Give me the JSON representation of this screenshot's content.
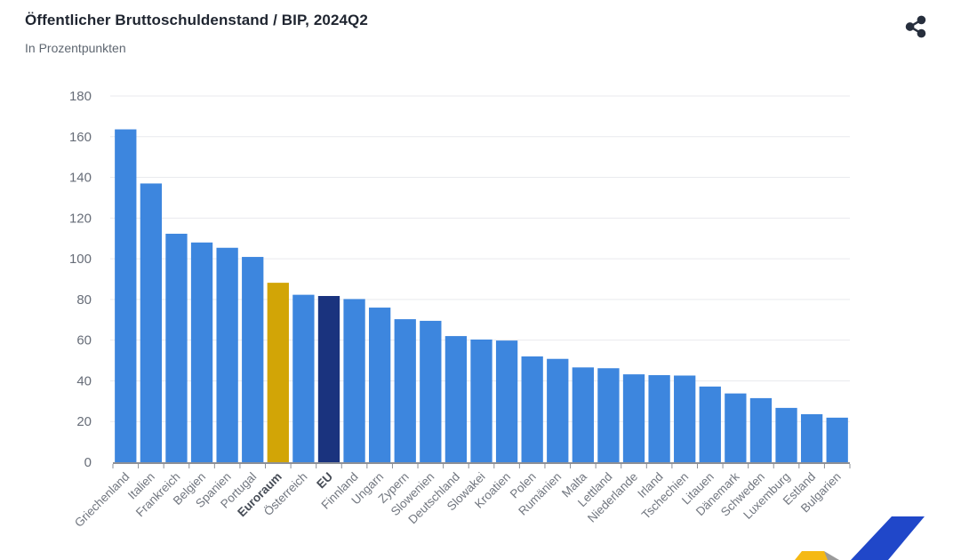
{
  "header": {
    "share_icon": "share-icon"
  },
  "chart_data": {
    "type": "bar",
    "title": "Öffentlicher Bruttoschuldenstand / BIP, 2024Q2",
    "subtitle": "In Prozentpunkten",
    "xlabel": "",
    "ylabel": "",
    "ylim": [
      0,
      180
    ],
    "ytick_step": 20,
    "grid": "horizontal",
    "legend": "none",
    "colors": {
      "bar_default": "#3d86de",
      "bar_gold": "#d2a506",
      "bar_navy": "#1a337e",
      "gridline": "#e9eaee",
      "axis": "#8d9097",
      "ytick_label": "#676d78",
      "xtick_label": "#71767f",
      "xtick_label_bold": "#464c56"
    },
    "points": [
      {
        "label": "Griechenland",
        "value": 163.6
      },
      {
        "label": "Italien",
        "value": 137.0
      },
      {
        "label": "Frankreich",
        "value": 112.3
      },
      {
        "label": "Belgien",
        "value": 108.0
      },
      {
        "label": "Spanien",
        "value": 105.4
      },
      {
        "label": "Portugal",
        "value": 100.9
      },
      {
        "label": "Euroraum",
        "value": 88.2,
        "highlight": "gold",
        "bold": true
      },
      {
        "label": "Österreich",
        "value": 82.3
      },
      {
        "label": "EU",
        "value": 81.7,
        "highlight": "navy",
        "bold": true
      },
      {
        "label": "Finnland",
        "value": 80.2
      },
      {
        "label": "Ungarn",
        "value": 76.0
      },
      {
        "label": "Zypern",
        "value": 70.3
      },
      {
        "label": "Slowenien",
        "value": 69.5
      },
      {
        "label": "Deutschland",
        "value": 62.0
      },
      {
        "label": "Slowakei",
        "value": 60.3
      },
      {
        "label": "Kroatien",
        "value": 59.8
      },
      {
        "label": "Polen",
        "value": 52.0
      },
      {
        "label": "Rumänien",
        "value": 50.8
      },
      {
        "label": "Malta",
        "value": 46.6
      },
      {
        "label": "Lettland",
        "value": 46.2
      },
      {
        "label": "Niederlande",
        "value": 43.2
      },
      {
        "label": "Irland",
        "value": 42.8
      },
      {
        "label": "Tschechien",
        "value": 42.6
      },
      {
        "label": "Litauen",
        "value": 37.2
      },
      {
        "label": "Dänemark",
        "value": 33.8
      },
      {
        "label": "Schweden",
        "value": 31.5
      },
      {
        "label": "Luxemburg",
        "value": 26.7
      },
      {
        "label": "Estland",
        "value": 23.6
      },
      {
        "label": "Bulgarien",
        "value": 21.9
      }
    ]
  },
  "logo": {
    "yellow": "#f5b914",
    "gray": "#9b9b9b",
    "blue": "#2047c9"
  }
}
